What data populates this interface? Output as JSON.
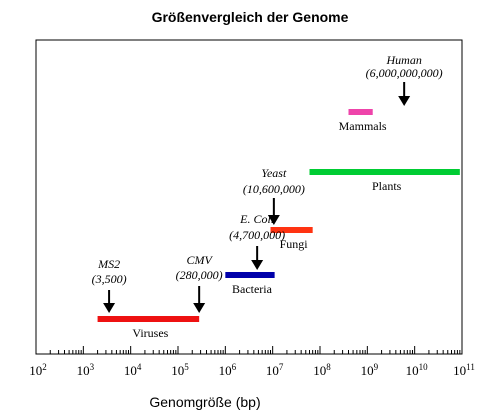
{
  "chart_data": {
    "type": "range-bar",
    "title": "Größenvergleich der Genome",
    "xlabel": "Genomgröße (bp)",
    "ylabel": "",
    "x_scale": "log10",
    "xlim": [
      100,
      100000000000
    ],
    "grid": false,
    "tick_labels": [
      {
        "base": "10",
        "exp": "2"
      },
      {
        "base": "10",
        "exp": "3"
      },
      {
        "base": "10",
        "exp": "4"
      },
      {
        "base": "10",
        "exp": "5"
      },
      {
        "base": "10",
        "exp": "6"
      },
      {
        "base": "10",
        "exp": "7"
      },
      {
        "base": "10",
        "exp": "8"
      },
      {
        "base": "10",
        "exp": "9"
      },
      {
        "base": "10",
        "exp": "10"
      },
      {
        "base": "10",
        "exp": "11"
      }
    ],
    "ranges": [
      {
        "label": "Viruses",
        "min": 2000,
        "max": 280000,
        "color": "#ee1111"
      },
      {
        "label": "Bacteria",
        "min": 1000000,
        "max": 11000000,
        "color": "#0000aa"
      },
      {
        "label": "Fungi",
        "min": 9000000,
        "max": 70000000,
        "color": "#ff3311"
      },
      {
        "label": "Plants",
        "min": 60000000,
        "max": 90000000000,
        "color": "#00cc33"
      },
      {
        "label": "Mammals",
        "min": 400000000,
        "max": 1300000000,
        "color": "#ee44aa"
      }
    ],
    "annotations": [
      {
        "name": "MS2",
        "value_label": "(3,500)",
        "value": 3500
      },
      {
        "name": "CMV",
        "value_label": "(280,000)",
        "value": 280000
      },
      {
        "name": "E. Coli",
        "value_label": "(4,700,000)",
        "value": 4700000
      },
      {
        "name": "Yeast",
        "value_label": "(10,600,000)",
        "value": 10600000
      },
      {
        "name": "Human",
        "value_label": "(6,000,000,000)",
        "value": 6000000000
      }
    ]
  }
}
